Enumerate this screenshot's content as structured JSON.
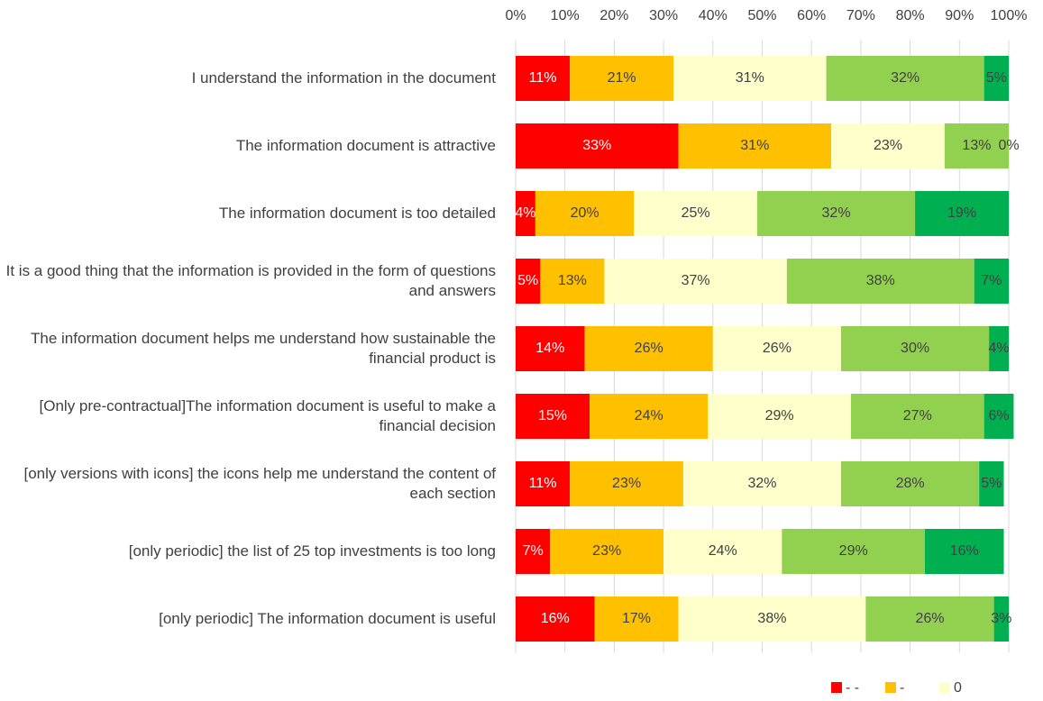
{
  "chart_data": {
    "type": "stacked-bar-horizontal",
    "categories": [
      "I understand the information in the document",
      "The information document is attractive",
      "The information document is too detailed",
      "It is a good thing that the information is provided in the form of questions and answers",
      "The information document helps me understand how sustainable the financial product is",
      "[Only pre-contractual]The information document is useful to make a financial decision",
      "[only versions with icons] the icons help me understand the content of each section",
      "[only periodic] the list of 25 top investments is too long",
      "[only periodic] The information document is useful"
    ],
    "series": [
      {
        "name": "- -",
        "color": "#ff0000",
        "values": [
          11,
          33,
          4,
          5,
          14,
          15,
          11,
          7,
          16
        ],
        "value_labels": [
          "11%",
          "33%",
          "4%",
          "5%",
          "14%",
          "15%",
          "11%",
          "7%",
          "16%"
        ]
      },
      {
        "name": "-",
        "color": "#ffc000",
        "values": [
          21,
          31,
          20,
          13,
          26,
          24,
          23,
          23,
          17
        ],
        "value_labels": [
          "21%",
          "31%",
          "20%",
          "13%",
          "26%",
          "24%",
          "23%",
          "23%",
          "17%"
        ]
      },
      {
        "name": "0",
        "color": "#ffffcc",
        "values": [
          31,
          23,
          25,
          37,
          26,
          29,
          32,
          24,
          38
        ],
        "value_labels": [
          "31%",
          "23%",
          "25%",
          "37%",
          "26%",
          "29%",
          "32%",
          "24%",
          "38%"
        ]
      },
      {
        "color": "#92d050",
        "values": [
          32,
          13,
          32,
          38,
          30,
          27,
          28,
          29,
          26
        ],
        "value_labels": [
          "32%",
          "13%",
          "32%",
          "38%",
          "30%",
          "27%",
          "28%",
          "29%",
          "26%"
        ]
      },
      {
        "color": "#00b050",
        "values": [
          5,
          0,
          19,
          7,
          4,
          6,
          5,
          16,
          3
        ],
        "value_labels": [
          "5%",
          "0%",
          "19%",
          "7%",
          "4%",
          "6%",
          "5%",
          "16%",
          "3%"
        ]
      }
    ],
    "xlim": [
      0,
      100
    ],
    "xticks": [
      {
        "value": 0,
        "label": "0%"
      },
      {
        "value": 10,
        "label": "10%"
      },
      {
        "value": 20,
        "label": "20%"
      },
      {
        "value": 30,
        "label": "30%"
      },
      {
        "value": 40,
        "label": "40%"
      },
      {
        "value": 50,
        "label": "50%"
      },
      {
        "value": 60,
        "label": "60%"
      },
      {
        "value": 70,
        "label": "70%"
      },
      {
        "value": 80,
        "label": "80%"
      },
      {
        "value": 90,
        "label": "90%"
      },
      {
        "value": 100,
        "label": "100%"
      }
    ],
    "grid": true
  }
}
